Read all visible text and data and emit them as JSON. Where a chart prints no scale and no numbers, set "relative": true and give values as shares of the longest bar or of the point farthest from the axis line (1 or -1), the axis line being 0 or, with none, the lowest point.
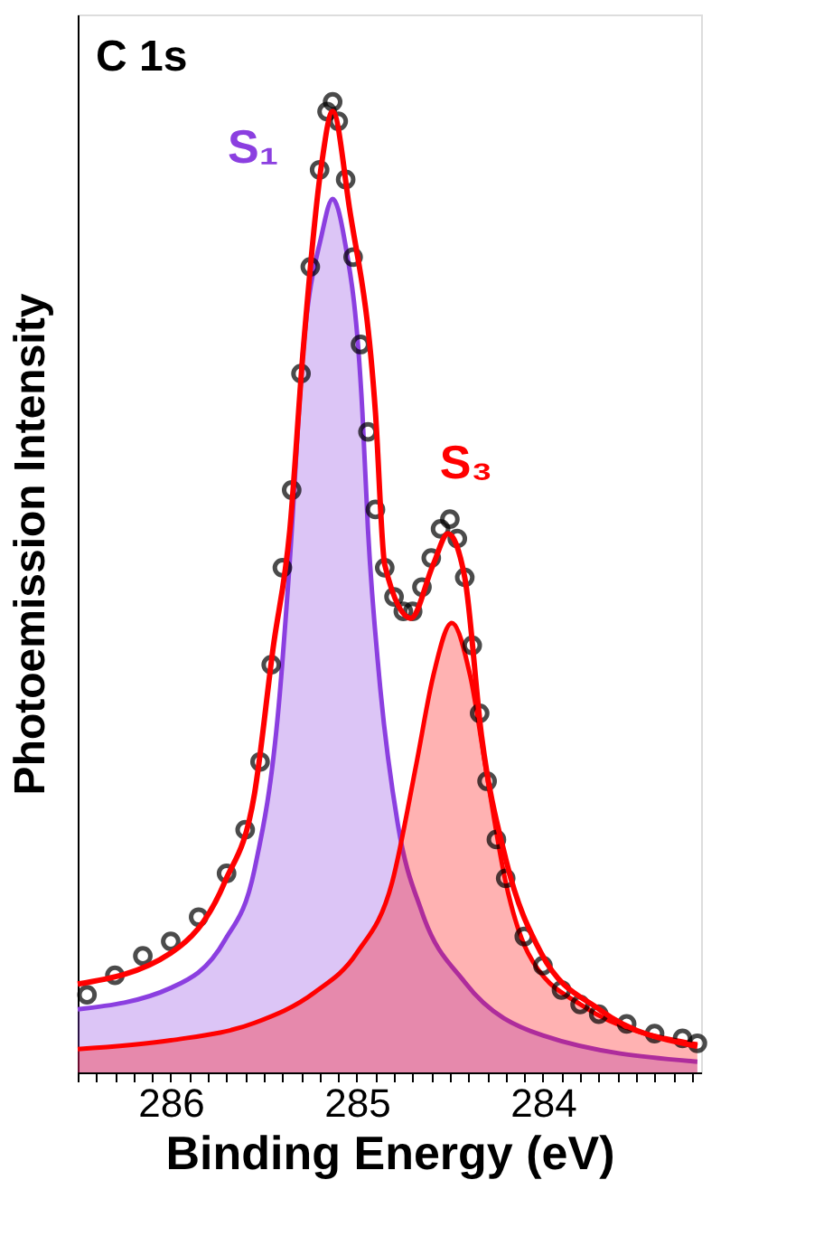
{
  "chart_data": {
    "type": "line",
    "relative": true,
    "xlabel": "Binding Energy (eV)",
    "ylabel": "Photoemission Intensity",
    "annotations": [
      "C 1s"
    ],
    "xlim": [
      286.5,
      283.15
    ],
    "xticks": [
      {
        "value": 286.5,
        "label": null
      },
      {
        "value": 286.4,
        "label": null
      },
      {
        "value": 286.3,
        "label": null
      },
      {
        "value": 286.2,
        "label": null
      },
      {
        "value": 286.1,
        "label": null
      },
      286,
      {
        "value": 285.9,
        "label": null
      },
      {
        "value": 285.8,
        "label": null
      },
      {
        "value": 285.7,
        "label": null
      },
      {
        "value": 285.6,
        "label": null
      },
      {
        "value": 285.5,
        "label": null
      },
      {
        "value": 285.4,
        "label": null
      },
      {
        "value": 285.3,
        "label": null
      },
      {
        "value": 285.2,
        "label": null
      },
      {
        "value": 285.1,
        "label": null
      },
      285,
      {
        "value": 284.9,
        "label": null
      },
      {
        "value": 284.8,
        "label": null
      },
      {
        "value": 284.7,
        "label": null
      },
      {
        "value": 284.6,
        "label": null
      },
      {
        "value": 284.5,
        "label": null
      },
      {
        "value": 284.4,
        "label": null
      },
      {
        "value": 284.3,
        "label": null
      },
      {
        "value": 284.2,
        "label": null
      },
      {
        "value": 284.1,
        "label": null
      },
      284,
      {
        "value": 283.9,
        "label": null
      },
      {
        "value": 283.8,
        "label": null
      },
      {
        "value": 283.7,
        "label": null
      },
      {
        "value": 283.6,
        "label": null
      },
      {
        "value": 283.5,
        "label": null
      },
      {
        "value": 283.4,
        "label": null
      },
      {
        "value": 283.3,
        "label": null
      },
      {
        "value": 283.2,
        "label": null
      }
    ],
    "grid": false,
    "series": [
      {
        "name": "S₁",
        "type": "area",
        "color": "#8b3fe0",
        "x": [
          286.5,
          286.0,
          285.71,
          285.55,
          285.42,
          285.36,
          285.29,
          285.19,
          285.13,
          285.07,
          284.97,
          284.94,
          284.88,
          284.78,
          284.65,
          284.42,
          284.0,
          283.17
        ],
        "values": [
          0.065,
          0.087,
          0.136,
          0.209,
          0.377,
          0.528,
          0.74,
          0.862,
          0.9,
          0.862,
          0.68,
          0.559,
          0.408,
          0.256,
          0.165,
          0.093,
          0.038,
          0.011
        ]
      },
      {
        "name": "S₃",
        "type": "area",
        "color": "#ff0000",
        "x": [
          286.5,
          286.0,
          285.55,
          285.23,
          285.0,
          284.81,
          284.68,
          284.59,
          284.49,
          284.39,
          284.3,
          284.2,
          284.08,
          283.79,
          283.17
        ],
        "values": [
          0.024,
          0.033,
          0.051,
          0.082,
          0.123,
          0.196,
          0.318,
          0.408,
          0.463,
          0.408,
          0.305,
          0.196,
          0.123,
          0.069,
          0.029
        ]
      },
      {
        "type": "scatter",
        "marker": "circle",
        "color": "#000000",
        "x": [
          286.45,
          286.3,
          286.15,
          286.0,
          285.85,
          285.7,
          285.6,
          285.52,
          285.46,
          285.4,
          285.35,
          285.3,
          285.25,
          285.2,
          285.16,
          285.13,
          285.1,
          285.06,
          285.02,
          284.98,
          284.94,
          284.9,
          284.85,
          284.8,
          284.75,
          284.7,
          284.65,
          284.6,
          284.55,
          284.5,
          284.46,
          284.42,
          284.38,
          284.34,
          284.3,
          284.25,
          284.2,
          284.1,
          284.0,
          283.9,
          283.8,
          283.7,
          283.55,
          283.4,
          283.25,
          283.17
        ],
        "values": [
          0.08,
          0.1,
          0.12,
          0.135,
          0.16,
          0.205,
          0.25,
          0.32,
          0.42,
          0.52,
          0.6,
          0.72,
          0.83,
          0.93,
          0.99,
          1.0,
          0.98,
          0.92,
          0.84,
          0.75,
          0.66,
          0.58,
          0.52,
          0.49,
          0.475,
          0.475,
          0.5,
          0.53,
          0.56,
          0.57,
          0.55,
          0.51,
          0.44,
          0.37,
          0.3,
          0.24,
          0.2,
          0.14,
          0.11,
          0.085,
          0.07,
          0.06,
          0.05,
          0.04,
          0.035,
          0.03
        ]
      },
      {
        "color": "#ff0000",
        "x": [
          286.5,
          286.0,
          285.71,
          285.55,
          285.45,
          285.36,
          285.29,
          285.19,
          285.13,
          285.04,
          284.9,
          284.85,
          284.71,
          284.59,
          284.51,
          284.42,
          284.33,
          284.2,
          284.01,
          283.69,
          283.17
        ],
        "values": [
          0.091,
          0.123,
          0.196,
          0.287,
          0.437,
          0.559,
          0.74,
          0.935,
          0.99,
          0.891,
          0.68,
          0.523,
          0.468,
          0.523,
          0.555,
          0.51,
          0.347,
          0.22,
          0.123,
          0.064,
          0.027
        ]
      }
    ]
  }
}
